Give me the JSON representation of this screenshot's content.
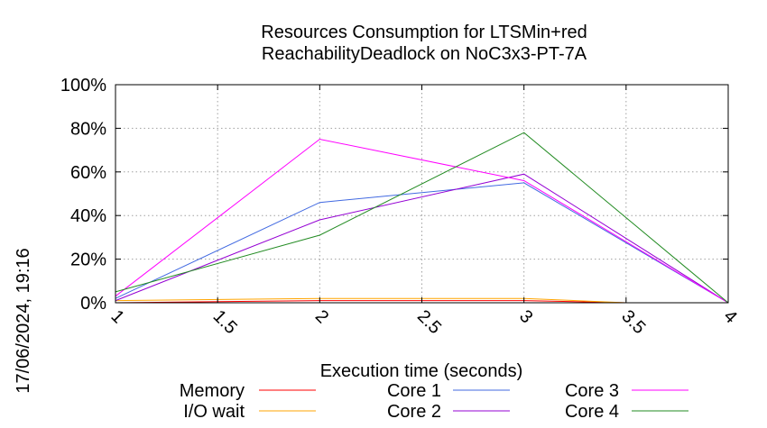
{
  "chart_data": {
    "type": "line",
    "title": [
      "Resources Consumption for LTSMin+red",
      "ReachabilityDeadlock on NoC3x3-PT-7A"
    ],
    "xlabel": "Execution time (seconds)",
    "ylabel": "",
    "xlim": [
      1,
      4
    ],
    "ylim": [
      0,
      100
    ],
    "xticks": [
      1,
      1.5,
      2,
      2.5,
      3,
      3.5,
      4
    ],
    "xtick_labels": [
      "1",
      "1.5",
      "2",
      "2.5",
      "3",
      "3.5",
      "4"
    ],
    "yticks": [
      0,
      20,
      40,
      60,
      80,
      100
    ],
    "ytick_labels": [
      "0%",
      "20%",
      "40%",
      "60%",
      "80%",
      "100%"
    ],
    "grid": true,
    "legend_position": "bottom",
    "timestamp": "17/06/2024, 19:16",
    "series": [
      {
        "name": "Memory",
        "color": "#ff0000",
        "x": [
          1,
          2,
          3,
          3.5
        ],
        "y": [
          0,
          1,
          1,
          0
        ]
      },
      {
        "name": "I/O wait",
        "color": "#ffa500",
        "x": [
          1,
          2,
          3,
          3.5
        ],
        "y": [
          1,
          2,
          2,
          0
        ]
      },
      {
        "name": "Core 1",
        "color": "#4169e1",
        "x": [
          1,
          2,
          3,
          4
        ],
        "y": [
          2,
          46,
          55,
          0
        ]
      },
      {
        "name": "Core 2",
        "color": "#9400d3",
        "x": [
          1,
          2,
          3,
          4
        ],
        "y": [
          1,
          38,
          59,
          0
        ]
      },
      {
        "name": "Core 3",
        "color": "#ff00ff",
        "x": [
          1,
          2,
          3,
          4
        ],
        "y": [
          3,
          75,
          56,
          0
        ]
      },
      {
        "name": "Core 4",
        "color": "#228b22",
        "x": [
          1,
          2,
          3,
          4
        ],
        "y": [
          5,
          31,
          78,
          0
        ]
      }
    ]
  }
}
